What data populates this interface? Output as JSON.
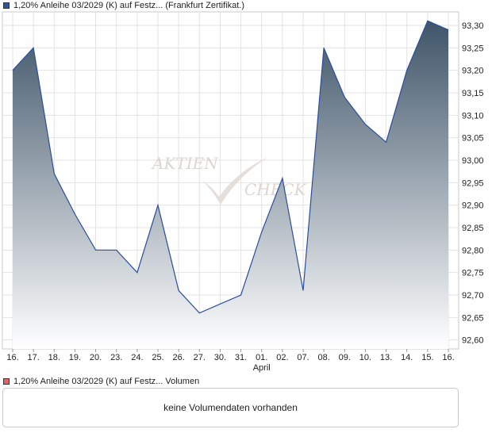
{
  "legend": {
    "price_label": "1,20% Anleihe 03/2029 (K) auf Festz... (Frankfurt Zertifikat.)",
    "price_color": "#2f5597",
    "volume_label": "1,20% Anleihe 03/2029 (K) auf Festz... Volumen",
    "volume_color": "#e06666"
  },
  "watermark": {
    "word1": "AKTIEN",
    "word2": "CHECK"
  },
  "volume_panel": {
    "message": "keine Volumendaten vorhanden"
  },
  "chart_data": {
    "type": "area",
    "x": [
      "16.",
      "17.",
      "18.",
      "19.",
      "20.",
      "23.",
      "24.",
      "25.",
      "26.",
      "27.",
      "30.",
      "31.",
      "01.",
      "02.",
      "07.",
      "08.",
      "09.",
      "10.",
      "13.",
      "14.",
      "15.",
      "16."
    ],
    "x_month_label": {
      "at": "01.",
      "text": "April"
    },
    "series": [
      {
        "values": [
          93.2,
          93.25,
          92.97,
          92.88,
          92.8,
          92.8,
          92.75,
          92.9,
          92.71,
          92.66,
          92.68,
          92.7,
          92.84,
          92.96,
          92.71,
          93.25,
          93.14,
          93.08,
          93.04,
          93.2,
          93.31,
          93.29
        ]
      }
    ],
    "ylim": [
      92.58,
      93.33
    ],
    "yticks": [
      "93,30",
      "93,25",
      "93,20",
      "93,15",
      "93,10",
      "93,05",
      "93,00",
      "92,95",
      "92,90",
      "92,85",
      "92,80",
      "92,75",
      "92,70",
      "92,65",
      "92,60"
    ],
    "ytick_values": [
      93.3,
      93.25,
      93.2,
      93.15,
      93.1,
      93.05,
      93.0,
      92.95,
      92.9,
      92.85,
      92.8,
      92.75,
      92.7,
      92.65,
      92.6
    ],
    "grid": true,
    "line_color": "#2a4da0",
    "fill_top_color": "#3f5568",
    "fill_bottom_color": "#ffffff",
    "ylabel": "",
    "xlabel": "",
    "title": ""
  }
}
